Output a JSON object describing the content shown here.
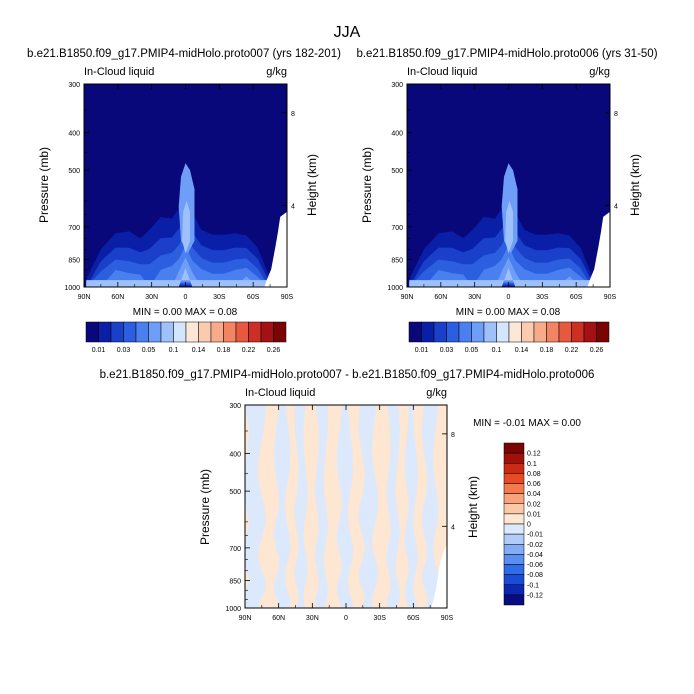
{
  "figure_title": "JJA",
  "panels": {
    "left": {
      "title": "b.e21.B1850.f09_g17.PMIP4-midHolo.proto007 (yrs 182-201)",
      "var_label": "In-Cloud liquid",
      "units": "g/kg",
      "min_max": "MIN =  0.00  MAX =  0.08"
    },
    "right": {
      "title": "b.e21.B1850.f09_g17.PMIP4-midHolo.proto006 (yrs 31-50)",
      "var_label": "In-Cloud liquid",
      "units": "g/kg",
      "min_max": "MIN =  0.00  MAX =  0.08"
    },
    "diff": {
      "title": "b.e21.B1850.f09_g17.PMIP4-midHolo.proto007 - b.e21.B1850.f09_g17.PMIP4-midHolo.proto006",
      "var_label": "In-Cloud liquid",
      "units": "g/kg",
      "min_max": "MIN = -0.01  MAX =  0.00"
    }
  },
  "axes": {
    "ylabel": "Pressure (mb)",
    "ylabel_right": "Height (km)",
    "pressure_ticks": [
      "300",
      "400",
      "500",
      "700",
      "850",
      "1000"
    ],
    "height_ticks": [
      "8",
      "4"
    ],
    "lat_ticks": [
      "90N",
      "60N",
      "30N",
      "0",
      "30S",
      "60S",
      "90S"
    ]
  },
  "colorbars": {
    "main_labels": [
      "0.01",
      "0.03",
      "0.05",
      "0.1",
      "0.14",
      "0.18",
      "0.22",
      "0.26"
    ],
    "diff_labels": [
      "0.12",
      "0.1",
      "0.08",
      "0.06",
      "0.04",
      "0.02",
      "0.01",
      "0",
      "-0.01",
      "-0.02",
      "-0.04",
      "-0.06",
      "-0.08",
      "-0.1",
      "-0.12"
    ]
  },
  "colors": {
    "main_levels": [
      "#08087a",
      "#0a1fa8",
      "#1a3fc9",
      "#2c5ee0",
      "#4a7ff0",
      "#6e9ef8",
      "#9ec1fb",
      "#d4e6fd",
      "#fde7d7",
      "#fbcbb0",
      "#f8ab8b",
      "#f28363",
      "#e6593f",
      "#cc2f23",
      "#a41114",
      "#7a0404"
    ],
    "diff_levels": [
      "#0a0a82",
      "#0c28b3",
      "#1a4cd6",
      "#2f6de8",
      "#5a8ef0",
      "#84abf3",
      "#b2ccf8",
      "#dce9fc",
      "#fde6d2",
      "#fbc9a8",
      "#f8a37a",
      "#f47a4d",
      "#e84b23",
      "#cc2a12",
      "#a3100b",
      "#7a0505"
    ]
  },
  "chart_data": [
    {
      "type": "heatmap",
      "title": "b.e21.B1850.f09_g17.PMIP4-midHolo.proto007 (yrs 182-201)",
      "xlabel": "",
      "ylabel": "Pressure (mb)",
      "xlim": [
        -90,
        90
      ],
      "ylim_pressure": [
        1000,
        300
      ],
      "x_ticks": [
        "90N",
        "60N",
        "30N",
        "0",
        "30S",
        "60S",
        "90S"
      ],
      "min": 0.0,
      "max": 0.08,
      "levels": [
        0.01,
        0.02,
        0.03,
        0.04,
        0.05,
        0.06,
        0.08,
        0.1,
        0.12,
        0.14,
        0.16,
        0.18,
        0.2,
        0.22,
        0.24,
        0.26
      ],
      "approx_profile": {
        "lat": [
          -88,
          -75,
          -62,
          -50,
          -40,
          -32,
          -22,
          -12,
          -6,
          0,
          6,
          14,
          24,
          34,
          44,
          54,
          64,
          74,
          82
        ],
        "top_pressure": [
          900,
          720,
          640,
          620,
          660,
          600,
          540,
          560,
          520,
          490,
          540,
          620,
          640,
          640,
          640,
          660,
          720,
          900,
          1000
        ],
        "peak_value": [
          0.02,
          0.045,
          0.055,
          0.05,
          0.05,
          0.045,
          0.05,
          0.055,
          0.06,
          0.075,
          0.06,
          0.055,
          0.05,
          0.05,
          0.055,
          0.06,
          0.05,
          0.03,
          0.01
        ]
      }
    },
    {
      "type": "heatmap",
      "title": "b.e21.B1850.f09_g17.PMIP4-midHolo.proto006 (yrs 31-50)",
      "xlabel": "",
      "ylabel": "Pressure (mb)",
      "xlim": [
        -90,
        90
      ],
      "ylim_pressure": [
        1000,
        300
      ],
      "x_ticks": [
        "90N",
        "60N",
        "30N",
        "0",
        "30S",
        "60S",
        "90S"
      ],
      "min": 0.0,
      "max": 0.08,
      "levels": [
        0.01,
        0.02,
        0.03,
        0.04,
        0.05,
        0.06,
        0.08,
        0.1,
        0.12,
        0.14,
        0.16,
        0.18,
        0.2,
        0.22,
        0.24,
        0.26
      ],
      "approx_profile": {
        "lat": [
          -88,
          -75,
          -62,
          -50,
          -40,
          -32,
          -22,
          -12,
          -6,
          0,
          6,
          14,
          24,
          34,
          44,
          54,
          64,
          74,
          82
        ],
        "top_pressure": [
          900,
          720,
          640,
          620,
          660,
          600,
          540,
          560,
          520,
          490,
          540,
          620,
          640,
          640,
          640,
          660,
          720,
          900,
          1000
        ],
        "peak_value": [
          0.02,
          0.045,
          0.055,
          0.05,
          0.05,
          0.045,
          0.05,
          0.055,
          0.06,
          0.075,
          0.06,
          0.055,
          0.05,
          0.05,
          0.055,
          0.06,
          0.05,
          0.03,
          0.01
        ]
      }
    },
    {
      "type": "heatmap",
      "title": "b.e21.B1850.f09_g17.PMIP4-midHolo.proto007 - b.e21.B1850.f09_g17.PMIP4-midHolo.proto006",
      "ylabel": "Pressure (mb)",
      "xlim": [
        -90,
        90
      ],
      "ylim_pressure": [
        1000,
        300
      ],
      "min": -0.01,
      "max": 0.0,
      "levels": [
        -0.12,
        -0.1,
        -0.08,
        -0.06,
        -0.04,
        -0.02,
        -0.01,
        0,
        0.01,
        0.02,
        0.04,
        0.06,
        0.08,
        0.1,
        0.12
      ],
      "approx_bands": {
        "lat_edges": [
          90,
          75,
          62,
          52,
          44,
          36,
          26,
          18,
          6,
          -4,
          -14,
          -26,
          -38,
          -46,
          -54,
          -62,
          -70,
          -80,
          -90
        ],
        "sign": [
          -1,
          1,
          -1,
          1,
          -1,
          1,
          -1,
          1,
          -1,
          1,
          -1,
          1,
          -1,
          1,
          -1,
          1,
          -1,
          1
        ]
      }
    }
  ]
}
